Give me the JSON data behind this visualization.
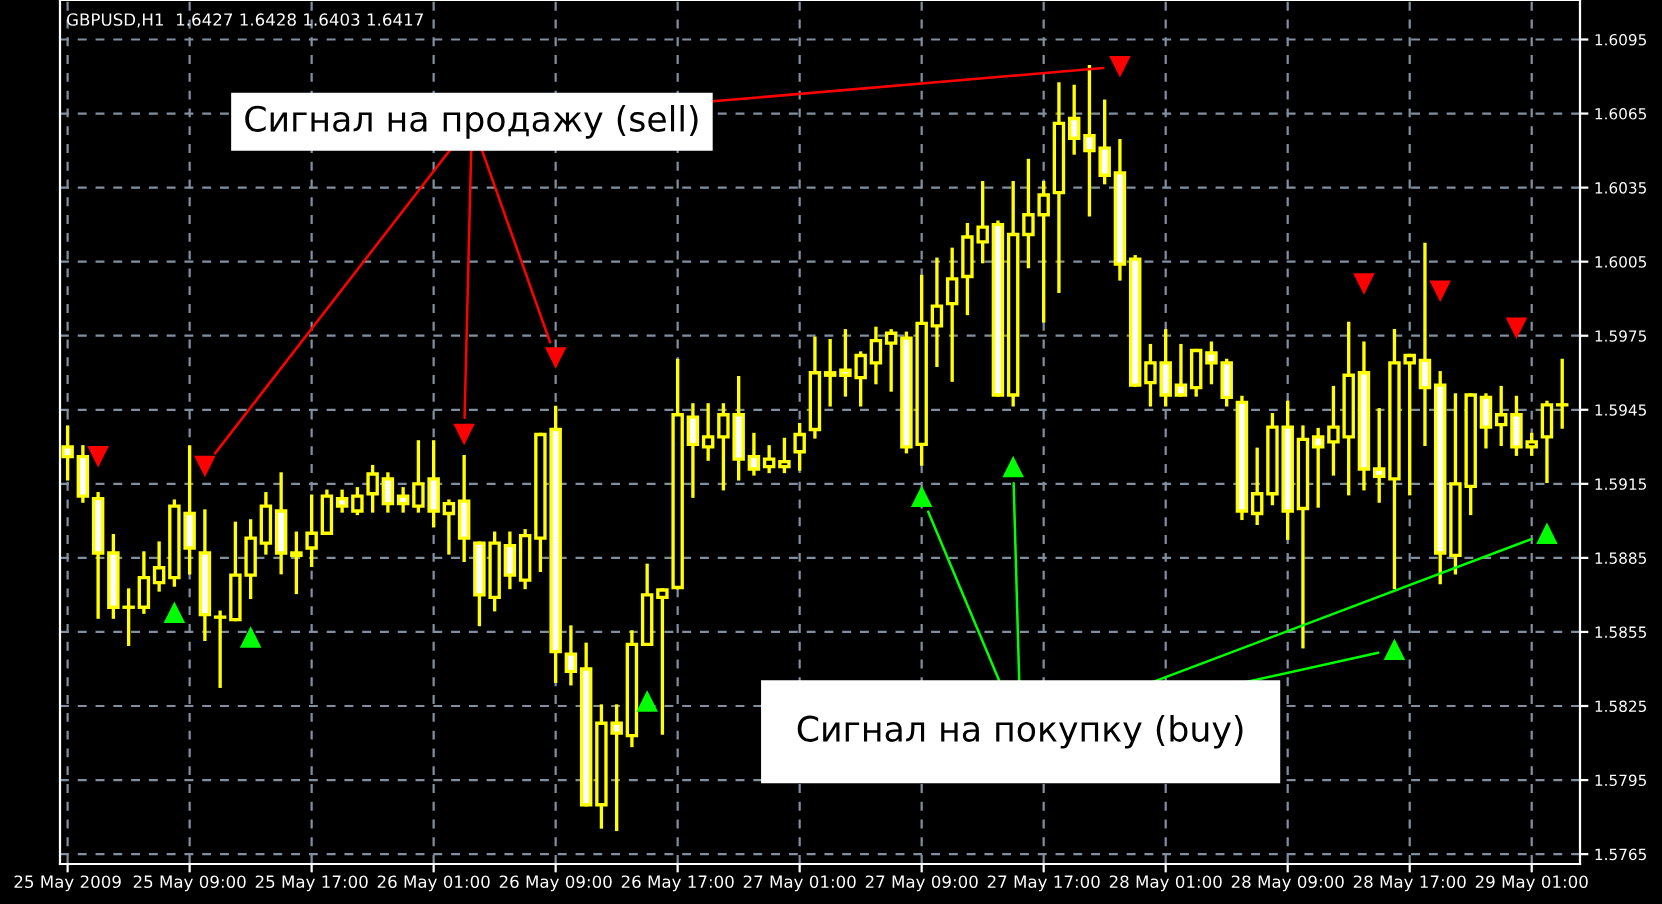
{
  "chart_data": {
    "type": "candlestick",
    "title": "GBPUSD,H1  1.6427 1.6428 1.6403 1.6417",
    "color": "#ffff00",
    "grid": true,
    "x": [
      "2009-05-25T01:00",
      "2009-05-25T02:00",
      "2009-05-25T03:00",
      "2009-05-25T04:00",
      "2009-05-25T05:00",
      "2009-05-25T06:00",
      "2009-05-25T07:00",
      "2009-05-25T08:00",
      "2009-05-25T09:00",
      "2009-05-25T10:00",
      "2009-05-25T11:00",
      "2009-05-25T12:00",
      "2009-05-25T13:00",
      "2009-05-25T14:00",
      "2009-05-25T15:00",
      "2009-05-25T16:00",
      "2009-05-25T17:00",
      "2009-05-25T18:00",
      "2009-05-25T19:00",
      "2009-05-25T20:00",
      "2009-05-25T21:00",
      "2009-05-25T22:00",
      "2009-05-25T23:00",
      "2009-05-26T00:00",
      "2009-05-26T01:00",
      "2009-05-26T02:00",
      "2009-05-26T03:00",
      "2009-05-26T04:00",
      "2009-05-26T05:00",
      "2009-05-26T06:00",
      "2009-05-26T07:00",
      "2009-05-26T08:00",
      "2009-05-26T09:00",
      "2009-05-26T10:00",
      "2009-05-26T11:00",
      "2009-05-26T12:00",
      "2009-05-26T13:00",
      "2009-05-26T14:00",
      "2009-05-26T15:00",
      "2009-05-26T16:00",
      "2009-05-26T17:00",
      "2009-05-26T18:00",
      "2009-05-26T19:00",
      "2009-05-26T20:00",
      "2009-05-26T21:00",
      "2009-05-26T22:00",
      "2009-05-26T23:00",
      "2009-05-27T00:00",
      "2009-05-27T01:00",
      "2009-05-27T02:00",
      "2009-05-27T03:00",
      "2009-05-27T04:00",
      "2009-05-27T05:00",
      "2009-05-27T06:00",
      "2009-05-27T07:00",
      "2009-05-27T08:00",
      "2009-05-27T09:00",
      "2009-05-27T10:00",
      "2009-05-27T11:00",
      "2009-05-27T12:00",
      "2009-05-27T13:00",
      "2009-05-27T14:00",
      "2009-05-27T15:00",
      "2009-05-27T16:00",
      "2009-05-27T17:00",
      "2009-05-27T18:00",
      "2009-05-27T19:00",
      "2009-05-27T20:00",
      "2009-05-27T21:00",
      "2009-05-27T22:00",
      "2009-05-27T23:00",
      "2009-05-28T00:00",
      "2009-05-28T01:00",
      "2009-05-28T02:00",
      "2009-05-28T03:00",
      "2009-05-28T04:00",
      "2009-05-28T05:00",
      "2009-05-28T06:00",
      "2009-05-28T07:00",
      "2009-05-28T08:00",
      "2009-05-28T09:00",
      "2009-05-28T10:00",
      "2009-05-28T11:00",
      "2009-05-28T12:00",
      "2009-05-28T13:00",
      "2009-05-28T14:00",
      "2009-05-28T15:00",
      "2009-05-28T16:00",
      "2009-05-28T17:00",
      "2009-05-28T18:00",
      "2009-05-28T19:00",
      "2009-05-28T20:00",
      "2009-05-28T21:00",
      "2009-05-28T22:00",
      "2009-05-28T23:00",
      "2009-05-29T00:00",
      "2009-05-29T01:00",
      "2009-05-29T02:00",
      "2009-05-29T03:00"
    ],
    "ohlc": [
      [
        1.593,
        1.5938,
        1.5917,
        1.5926
      ],
      [
        1.5926,
        1.593,
        1.5908,
        1.591
      ],
      [
        1.5909,
        1.5911,
        1.5861,
        1.5887
      ],
      [
        1.5887,
        1.5894,
        1.5861,
        1.5865
      ],
      [
        1.5865,
        1.5872,
        1.585,
        1.5865
      ],
      [
        1.5865,
        1.5887,
        1.5863,
        1.5877
      ],
      [
        1.5875,
        1.5891,
        1.5872,
        1.5881
      ],
      [
        1.5877,
        1.5908,
        1.5874,
        1.5906
      ],
      [
        1.5903,
        1.593,
        1.5879,
        1.5889
      ],
      [
        1.5887,
        1.5904,
        1.5852,
        1.5862
      ],
      [
        1.5861,
        1.5863,
        1.5833,
        1.5861
      ],
      [
        1.586,
        1.5899,
        1.586,
        1.5878
      ],
      [
        1.5878,
        1.59,
        1.5869,
        1.5893
      ],
      [
        1.5891,
        1.5911,
        1.5887,
        1.5906
      ],
      [
        1.5904,
        1.5919,
        1.5879,
        1.5887
      ],
      [
        1.5886,
        1.5895,
        1.5871,
        1.5887
      ],
      [
        1.5889,
        1.591,
        1.5882,
        1.5895
      ],
      [
        1.5895,
        1.5912,
        1.5895,
        1.591
      ],
      [
        1.5909,
        1.5912,
        1.5904,
        1.5906
      ],
      [
        1.5904,
        1.5913,
        1.5903,
        1.591
      ],
      [
        1.5911,
        1.5922,
        1.5904,
        1.5919
      ],
      [
        1.5917,
        1.5919,
        1.5904,
        1.5907
      ],
      [
        1.591,
        1.5913,
        1.5904,
        1.5907
      ],
      [
        1.5906,
        1.5932,
        1.5904,
        1.5915
      ],
      [
        1.5917,
        1.5932,
        1.5898,
        1.5904
      ],
      [
        1.5903,
        1.5908,
        1.5887,
        1.5907
      ],
      [
        1.5908,
        1.5926,
        1.5884,
        1.5893
      ],
      [
        1.5891,
        1.5891,
        1.5858,
        1.587
      ],
      [
        1.5869,
        1.5895,
        1.5864,
        1.5891
      ],
      [
        1.589,
        1.5895,
        1.5873,
        1.5878
      ],
      [
        1.5876,
        1.5896,
        1.5873,
        1.5894
      ],
      [
        1.5893,
        1.5935,
        1.588,
        1.5935
      ],
      [
        1.5937,
        1.5946,
        1.5835,
        1.5847
      ],
      [
        1.5846,
        1.5857,
        1.5834,
        1.5839
      ],
      [
        1.584,
        1.585,
        1.5785,
        1.5785
      ],
      [
        1.5785,
        1.5825,
        1.5776,
        1.5818
      ],
      [
        1.5818,
        1.5825,
        1.5775,
        1.5814
      ],
      [
        1.5813,
        1.5855,
        1.5809,
        1.585
      ],
      [
        1.585,
        1.5882,
        1.585,
        1.587
      ],
      [
        1.5869,
        1.5872,
        1.5814,
        1.5872
      ],
      [
        1.5873,
        1.5965,
        1.5873,
        1.5943
      ],
      [
        1.5942,
        1.5947,
        1.591,
        1.5931
      ],
      [
        1.593,
        1.5947,
        1.5925,
        1.5934
      ],
      [
        1.5934,
        1.5947,
        1.5913,
        1.5943
      ],
      [
        1.5943,
        1.5958,
        1.5917,
        1.5925
      ],
      [
        1.5926,
        1.5935,
        1.5919,
        1.5921
      ],
      [
        1.5922,
        1.593,
        1.592,
        1.5925
      ],
      [
        1.5922,
        1.5933,
        1.592,
        1.5924
      ],
      [
        1.5928,
        1.5939,
        1.5921,
        1.5935
      ],
      [
        1.5937,
        1.5974,
        1.5934,
        1.596
      ],
      [
        1.5959,
        1.5973,
        1.5947,
        1.596
      ],
      [
        1.5961,
        1.5977,
        1.5951,
        1.5959
      ],
      [
        1.5958,
        1.5968,
        1.5947,
        1.5967
      ],
      [
        1.5964,
        1.5978,
        1.5956,
        1.5973
      ],
      [
        1.5972,
        1.5977,
        1.5953,
        1.5976
      ],
      [
        1.5974,
        1.5976,
        1.5928,
        1.593
      ],
      [
        1.5931,
        1.5999,
        1.5923,
        1.598
      ],
      [
        1.5979,
        1.6006,
        1.5963,
        1.5987
      ],
      [
        1.5988,
        1.601,
        1.5957,
        1.5998
      ],
      [
        1.5999,
        1.602,
        1.5984,
        1.6015
      ],
      [
        1.6013,
        1.6037,
        1.6005,
        1.6019
      ],
      [
        1.602,
        1.6021,
        1.5951,
        1.5951
      ],
      [
        1.5951,
        1.6037,
        1.5947,
        1.6016
      ],
      [
        1.6016,
        1.6046,
        1.6003,
        1.6024
      ],
      [
        1.6024,
        1.6037,
        1.5981,
        1.6032
      ],
      [
        1.6033,
        1.6077,
        1.5993,
        1.6061
      ],
      [
        1.6063,
        1.6076,
        1.6049,
        1.6055
      ],
      [
        1.6056,
        1.6084,
        1.6024,
        1.605
      ],
      [
        1.6051,
        1.607,
        1.6037,
        1.604
      ],
      [
        1.6041,
        1.6054,
        1.5998,
        1.6004
      ],
      [
        1.6006,
        1.6007,
        1.5955,
        1.5955
      ],
      [
        1.5956,
        1.5971,
        1.5947,
        1.5964
      ],
      [
        1.5964,
        1.5977,
        1.5947,
        1.5951
      ],
      [
        1.5955,
        1.5971,
        1.5951,
        1.5951
      ],
      [
        1.5954,
        1.5969,
        1.5951,
        1.5969
      ],
      [
        1.5968,
        1.5972,
        1.5956,
        1.5964
      ],
      [
        1.5964,
        1.5965,
        1.5947,
        1.595
      ],
      [
        1.5948,
        1.595,
        1.5901,
        1.5904
      ],
      [
        1.5903,
        1.5929,
        1.5899,
        1.5911
      ],
      [
        1.5911,
        1.5943,
        1.5907,
        1.5938
      ],
      [
        1.5938,
        1.5948,
        1.5893,
        1.5904
      ],
      [
        1.5905,
        1.5938,
        1.5849,
        1.5933
      ],
      [
        1.5934,
        1.5937,
        1.5906,
        1.593
      ],
      [
        1.5932,
        1.5954,
        1.5919,
        1.5938
      ],
      [
        1.5934,
        1.598,
        1.5911,
        1.5959
      ],
      [
        1.596,
        1.5972,
        1.5913,
        1.5921
      ],
      [
        1.5921,
        1.5945,
        1.5908,
        1.5918
      ],
      [
        1.5917,
        1.5977,
        1.5873,
        1.5964
      ],
      [
        1.5964,
        1.5967,
        1.5911,
        1.5967
      ],
      [
        1.5965,
        1.6012,
        1.5931,
        1.5954
      ],
      [
        1.5955,
        1.596,
        1.5875,
        1.5887
      ],
      [
        1.5886,
        1.5951,
        1.5879,
        1.5915
      ],
      [
        1.5914,
        1.5951,
        1.5903,
        1.5951
      ],
      [
        1.595,
        1.5951,
        1.593,
        1.5938
      ],
      [
        1.5939,
        1.5954,
        1.5931,
        1.5943
      ],
      [
        1.5943,
        1.595,
        1.5927,
        1.593
      ],
      [
        1.593,
        1.5935,
        1.5927,
        1.5932
      ],
      [
        1.5934,
        1.5948,
        1.5916,
        1.5947
      ],
      [
        1.5947,
        1.5965,
        1.5938,
        1.5947
      ]
    ],
    "series": [
      {
        "type": "scatter",
        "marker": "triangle",
        "color": "#ff0000",
        "x": [
          "2009-05-25T03:00",
          "2009-05-25T10:00",
          "2009-05-26T03:00",
          "2009-05-26T09:00",
          "2009-05-27T22:00",
          "2009-05-28T14:00",
          "2009-05-28T19:00",
          "2009-05-29T00:00"
        ],
        "values": [
          1.5926,
          1.5922,
          1.5935,
          1.5966,
          1.6084,
          1.5996,
          1.5993,
          1.5978
        ]
      },
      {
        "type": "scatter",
        "marker": "triangle",
        "color": "#00ff00",
        "x": [
          "2009-05-25T08:00",
          "2009-05-25T13:00",
          "2009-05-26T15:00",
          "2009-05-27T09:00",
          "2009-05-27T15:00",
          "2009-05-28T16:00",
          "2009-05-29T02:00"
        ],
        "values": [
          1.5863,
          1.5853,
          1.5827,
          1.591,
          1.5922,
          1.5848,
          1.5895
        ]
      }
    ],
    "annotations": [
      {
        "text": "Сигнал на продажу (sell)",
        "x": "2009-05-27T22:00",
        "y": 1.6084
      },
      {
        "text": "Сигнал на покупку (buy)",
        "x": "2009-05-27T09:00",
        "y": 1.591
      }
    ],
    "xlim": [
      "2009-05-25T00:30",
      "2009-05-29T04:10"
    ],
    "xticks": [
      {
        "value": "2009-05-25T01:00",
        "label": "25 May 2009"
      },
      {
        "value": "2009-05-25T09:00",
        "label": "25 May 09:00"
      },
      {
        "value": "2009-05-25T17:00",
        "label": "25 May 17:00"
      },
      {
        "value": "2009-05-26T01:00",
        "label": "26 May 01:00"
      },
      {
        "value": "2009-05-26T09:00",
        "label": "26 May 09:00"
      },
      {
        "value": "2009-05-26T17:00",
        "label": "26 May 17:00"
      },
      {
        "value": "2009-05-27T01:00",
        "label": "27 May 01:00"
      },
      {
        "value": "2009-05-27T09:00",
        "label": "27 May 09:00"
      },
      {
        "value": "2009-05-27T17:00",
        "label": "27 May 17:00"
      },
      {
        "value": "2009-05-28T01:00",
        "label": "28 May 01:00"
      },
      {
        "value": "2009-05-28T09:00",
        "label": "28 May 09:00"
      },
      {
        "value": "2009-05-28T17:00",
        "label": "28 May 17:00"
      },
      {
        "value": "2009-05-29T01:00",
        "label": "29 May 01:00"
      }
    ],
    "ylim": [
      1.5761,
      1.6111
    ],
    "yticks": [
      1.5765,
      1.5795,
      1.5825,
      1.5855,
      1.5885,
      1.5915,
      1.5945,
      1.5975,
      1.6005,
      1.6035,
      1.6065,
      1.6095
    ]
  }
}
